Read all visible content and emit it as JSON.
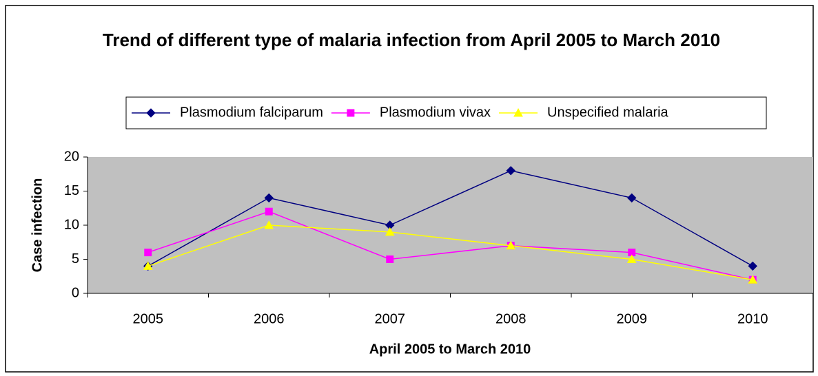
{
  "chart_data": {
    "type": "line",
    "title": "Trend of different type of malaria infection from April 2005 to March 2010",
    "x_label": "April 2005 to March 2010",
    "y_label": "Case infection",
    "categories": [
      "2005",
      "2006",
      "2007",
      "2008",
      "2009",
      "2010"
    ],
    "series": [
      {
        "name": "Plasmodium falciparum",
        "color": "#000080",
        "marker": "diamond",
        "values": [
          4,
          14,
          10,
          18,
          14,
          4
        ]
      },
      {
        "name": "Plasmodium vivax",
        "color": "#ff00ff",
        "marker": "square",
        "values": [
          6,
          12,
          5,
          7,
          6,
          2
        ]
      },
      {
        "name": "Unspecified malaria",
        "color": "#ffff00",
        "marker": "triangle",
        "values": [
          4,
          10,
          9,
          7,
          5,
          2
        ]
      }
    ],
    "ylim": [
      0,
      20
    ],
    "yticks": [
      0,
      5,
      10,
      15,
      20
    ],
    "plot_background": "#c0c0c0",
    "legend": "top"
  }
}
